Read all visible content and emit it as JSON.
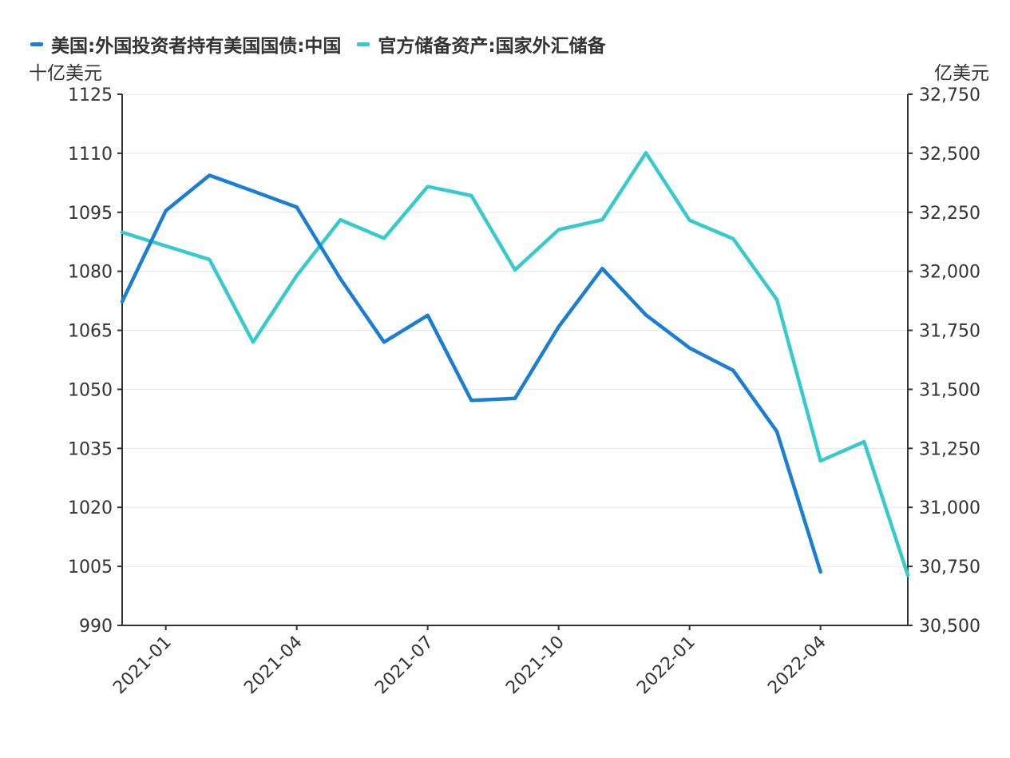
{
  "colors": {
    "series1": "#1a7fd4",
    "series2": "#35cbcc",
    "axis": "#333333",
    "grid": "#e6e6e6"
  },
  "chart_data": {
    "type": "line",
    "title": "",
    "legend_position": "top-left",
    "grid": true,
    "x": [
      "2020-12",
      "2021-01",
      "2021-02",
      "2021-03",
      "2021-04",
      "2021-05",
      "2021-06",
      "2021-07",
      "2021-08",
      "2021-09",
      "2021-10",
      "2021-11",
      "2021-12",
      "2022-01",
      "2022-02",
      "2022-03",
      "2022-04",
      "2022-05",
      "2022-06"
    ],
    "xticks": [
      "2021-01",
      "2021-04",
      "2021-07",
      "2021-10",
      "2022-01",
      "2022-04"
    ],
    "left_axis": {
      "label": "十亿美元",
      "min": 990,
      "max": 1125,
      "ticks": [
        "1125",
        "1110",
        "1095",
        "1080",
        "1065",
        "1050",
        "1035",
        "1020",
        "1005",
        "990"
      ]
    },
    "right_axis": {
      "label": "亿美元",
      "min": 30500,
      "max": 32750,
      "ticks": [
        "32,750",
        "32,500",
        "32,250",
        "32,000",
        "31,750",
        "31,500",
        "31,250",
        "31,000",
        "30,750",
        "30,500"
      ]
    },
    "series": [
      {
        "name": "美国:外国投资者持有美国国债:中国",
        "axis": "left",
        "values": [
          1072.3,
          1095.4,
          1104.4,
          1100.4,
          1096.3,
          1078.1,
          1062.0,
          1068.8,
          1047.2,
          1047.7,
          1065.9,
          1080.7,
          1068.9,
          1060.5,
          1054.8,
          1039.3,
          1003.6,
          null,
          null
        ]
      },
      {
        "name": "官方储备资产:国家外汇储备",
        "axis": "right",
        "values": [
          32165,
          32107,
          32050,
          31700,
          31982,
          32218,
          32140,
          32359,
          32321,
          32006,
          32176,
          32218,
          32502,
          32216,
          32138,
          31880,
          31197,
          31278,
          30713
        ]
      }
    ]
  }
}
